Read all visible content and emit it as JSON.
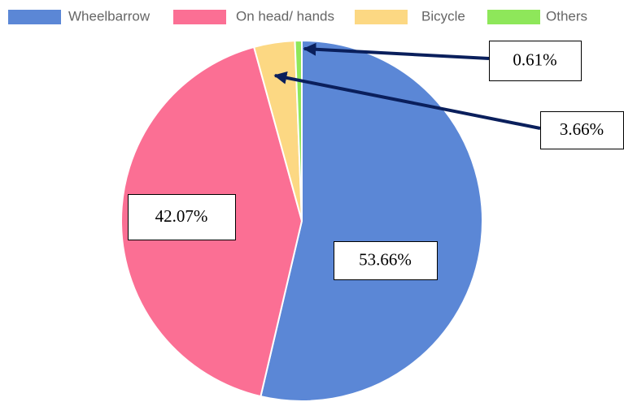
{
  "chart_data": {
    "type": "pie",
    "categories": [
      "Wheelbarrow",
      "On head/ hands",
      "Bicycle",
      "Others"
    ],
    "values": [
      53.66,
      42.07,
      3.66,
      0.61
    ],
    "value_labels": [
      "53.66%",
      "42.07%",
      "3.66%",
      "0.61%"
    ],
    "colors": [
      "#5b87d6",
      "#fb6f94",
      "#fcd883",
      "#8ee75a"
    ],
    "legend": "top"
  }
}
